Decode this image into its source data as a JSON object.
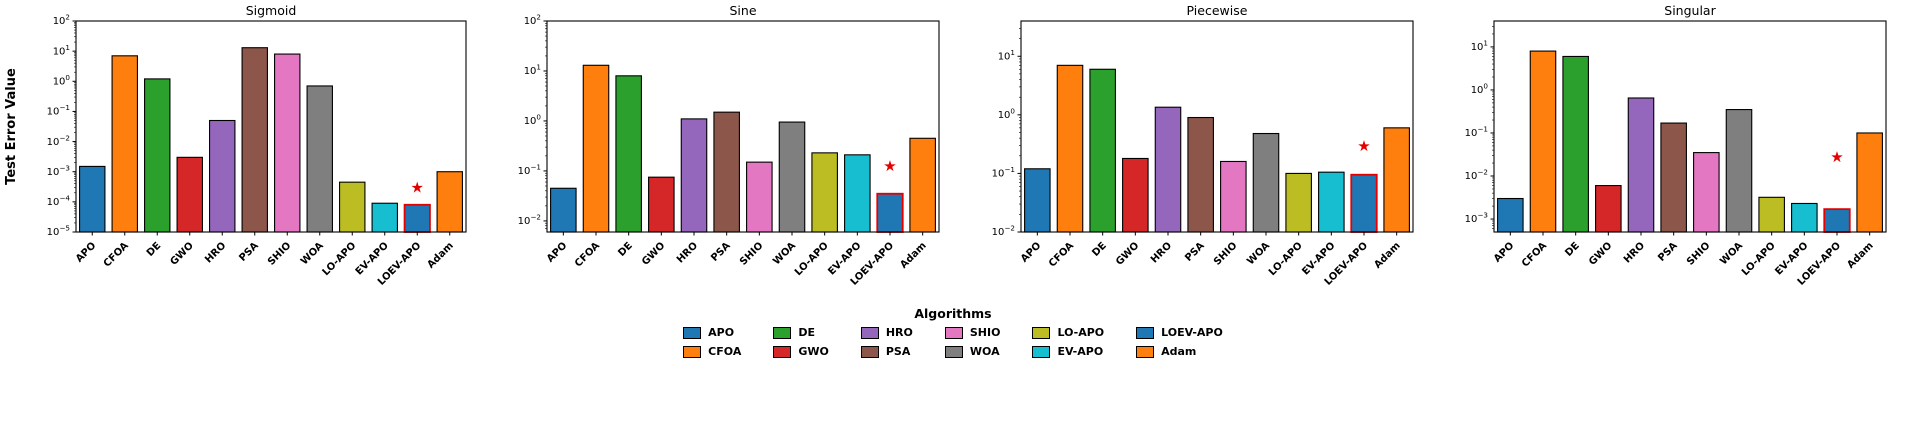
{
  "figure": {
    "ylabel": "Test Error Value",
    "legend_title": "Algorithms"
  },
  "algorithms": [
    "APO",
    "CFOA",
    "DE",
    "GWO",
    "HRO",
    "PSA",
    "SHIO",
    "WOA",
    "LO-APO",
    "EV-APO",
    "LOEV-APO",
    "Adam"
  ],
  "colors": [
    "#1f77b4",
    "#ff7f0e",
    "#2ca02c",
    "#d62728",
    "#9467bd",
    "#8c564b",
    "#e377c2",
    "#7f7f7f",
    "#bcbd22",
    "#17becf",
    "#1f77b4",
    "#ff7f0e"
  ],
  "highlight": {
    "index": 10,
    "edge_color": "#e50000",
    "star_color": "#e50000",
    "star_glyph": "star-icon"
  },
  "chart_data": [
    {
      "type": "bar",
      "title": "Sigmoid",
      "categories": [
        "APO",
        "CFOA",
        "DE",
        "GWO",
        "HRO",
        "PSA",
        "SHIO",
        "WOA",
        "LO-APO",
        "EV-APO",
        "LOEV-APO",
        "Adam"
      ],
      "values": [
        0.0015,
        7,
        1.2,
        0.003,
        0.05,
        13,
        8,
        0.7,
        0.00045,
        9e-05,
        8e-05,
        0.001
      ],
      "ylim": [
        1e-05,
        100
      ],
      "tick_exponents": [
        -5,
        -4,
        -3,
        -2,
        -1,
        0,
        1,
        2
      ],
      "star_value": 0.00028,
      "yscale": "log"
    },
    {
      "type": "bar",
      "title": "Sine",
      "categories": [
        "APO",
        "CFOA",
        "DE",
        "GWO",
        "HRO",
        "PSA",
        "SHIO",
        "WOA",
        "LO-APO",
        "EV-APO",
        "LOEV-APO",
        "Adam"
      ],
      "values": [
        0.045,
        13,
        8,
        0.075,
        1.1,
        1.5,
        0.15,
        0.95,
        0.23,
        0.21,
        0.035,
        0.45
      ],
      "ylim": [
        0.006,
        100
      ],
      "tick_exponents": [
        -2,
        -1,
        0,
        1,
        2
      ],
      "star_value": 0.12,
      "yscale": "log"
    },
    {
      "type": "bar",
      "title": "Piecewise",
      "categories": [
        "APO",
        "CFOA",
        "DE",
        "GWO",
        "HRO",
        "PSA",
        "SHIO",
        "WOA",
        "LO-APO",
        "EV-APO",
        "LOEV-APO",
        "Adam"
      ],
      "values": [
        0.12,
        7,
        6,
        0.18,
        1.35,
        0.9,
        0.16,
        0.48,
        0.1,
        0.105,
        0.095,
        0.6
      ],
      "ylim": [
        0.01,
        40
      ],
      "tick_exponents": [
        -2,
        -1,
        0,
        1
      ],
      "star_value": 0.28,
      "yscale": "log"
    },
    {
      "type": "bar",
      "title": "Singular",
      "categories": [
        "APO",
        "CFOA",
        "DE",
        "GWO",
        "HRO",
        "PSA",
        "SHIO",
        "WOA",
        "LO-APO",
        "EV-APO",
        "LOEV-APO",
        "Adam"
      ],
      "values": [
        0.003,
        8,
        6,
        0.006,
        0.65,
        0.17,
        0.035,
        0.35,
        0.0032,
        0.0023,
        0.0017,
        0.1
      ],
      "ylim": [
        0.0005,
        40
      ],
      "tick_exponents": [
        -3,
        -2,
        -1,
        0,
        1
      ],
      "star_value": 0.026,
      "yscale": "log"
    }
  ]
}
